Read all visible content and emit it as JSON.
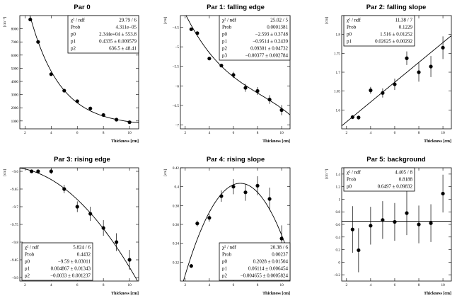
{
  "chart_data": [
    {
      "type": "scatter",
      "title": "Par 0",
      "xlabel": "Thickness [cm]",
      "ylabel": "[cm⁻³]",
      "xlim": [
        1.6,
        10.7
      ],
      "ylim": [
        400,
        9000
      ],
      "xticks": [
        2,
        4,
        6,
        8,
        10
      ],
      "yticks": [
        1000,
        2000,
        3000,
        4000,
        5000,
        6000,
        7000,
        8000
      ],
      "x": [
        2.4,
        3.0,
        4.0,
        5.0,
        6.0,
        7.0,
        8.0,
        9.0,
        10.0
      ],
      "y": [
        8700,
        7000,
        4550,
        3300,
        2500,
        1950,
        1450,
        1100,
        900
      ],
      "yerr": [
        0,
        0,
        0,
        0,
        0,
        0,
        0,
        0,
        0
      ],
      "curve": {
        "kind": "exp",
        "a": 23440,
        "b": 0.4335,
        "c": 636.5
      },
      "stats": {
        "side": "right",
        "rows": [
          {
            "label": "χ² / ndf",
            "value": "29.79 / 6"
          },
          {
            "label": "Prob",
            "value": "4.311e−05"
          },
          {
            "label": "p0",
            "value": "2.344e+04 ± 553.8"
          },
          {
            "label": "p1",
            "value": "0.4335 ± 0.009579"
          },
          {
            "label": "p2",
            "value": "636.5 ± 48.41"
          }
        ]
      }
    },
    {
      "type": "scatter",
      "title": "Par 1: falling edge",
      "xlabel": "Thickness [cm]",
      "ylabel": "[cm]",
      "xlim": [
        1.6,
        10.7
      ],
      "ylim": [
        -7.1,
        -4.2
      ],
      "xticks": [
        2,
        4,
        6,
        8,
        10
      ],
      "yticks": [
        -7,
        -6.5,
        -6,
        -5.5,
        -5,
        -4.5
      ],
      "x": [
        2.5,
        3.0,
        4.0,
        5.0,
        6.0,
        7.0,
        8.0,
        9.0,
        10.0
      ],
      "y": [
        -4.55,
        -4.65,
        -5.3,
        -5.48,
        -5.72,
        -6.05,
        -6.13,
        -6.35,
        -6.62
      ],
      "yerr": [
        0,
        0,
        0,
        0,
        0.08,
        0.1,
        0.1,
        0.11,
        0.13
      ],
      "curve": {
        "kind": "poly",
        "coef": [
          -2.593,
          -0.9514,
          0.09301,
          -0.00377
        ]
      },
      "stats": {
        "side": "right",
        "rows": [
          {
            "label": "χ² / ndf",
            "value": "25.02 / 5"
          },
          {
            "label": "Prob",
            "value": "0.0001381"
          },
          {
            "label": "p0",
            "value": "−2.593 ± 0.3748"
          },
          {
            "label": "p1",
            "value": "−0.9514 ± 0.2439"
          },
          {
            "label": "p2",
            "value": "0.09301 ± 0.04732"
          },
          {
            "label": "p3",
            "value": "−0.00377 ± 0.002784"
          }
        ]
      }
    },
    {
      "type": "scatter",
      "title": "Par 2: falling slope",
      "xlabel": "Thickness [cm]",
      "ylabel": "[cm]",
      "xlim": [
        1.6,
        10.7
      ],
      "ylim": [
        1.55,
        1.85
      ],
      "xticks": [
        2,
        4,
        6,
        8,
        10
      ],
      "yticks": [
        1.6,
        1.65,
        1.7,
        1.75,
        1.8
      ],
      "x": [
        2.5,
        3.0,
        4.0,
        5.0,
        6.0,
        7.0,
        8.0,
        9.0,
        10.0
      ],
      "y": [
        1.581,
        1.58,
        1.652,
        1.645,
        1.668,
        1.737,
        1.7,
        1.715,
        1.765
      ],
      "yerr": [
        0.005,
        0.005,
        0.009,
        0.012,
        0.015,
        0.018,
        0.025,
        0.028,
        0.03
      ],
      "curve": {
        "kind": "poly",
        "coef": [
          1.516,
          0.02625
        ]
      },
      "stats": {
        "side": "left",
        "rows": [
          {
            "label": "χ² / ndf",
            "value": "11.38 / 7"
          },
          {
            "label": "Prob",
            "value": "0.1229"
          },
          {
            "label": "p0",
            "value": "1.516 ± 0.01252"
          },
          {
            "label": "p1",
            "value": "0.02625 ± 0.00292"
          }
        ]
      }
    },
    {
      "type": "scatter",
      "title": "Par 3: rising edge",
      "xlabel": "Thickness [cm]",
      "ylabel": "[cm]",
      "xlim": [
        1.6,
        10.7
      ],
      "ylim": [
        -9.91,
        -9.59
      ],
      "xticks": [
        2,
        4,
        6,
        8,
        10
      ],
      "yticks": [
        -9.9,
        -9.85,
        -9.8,
        -9.75,
        -9.7,
        -9.65,
        -9.6
      ],
      "x": [
        2.5,
        3.0,
        4.0,
        5.0,
        6.0,
        7.0,
        8.0,
        9.0,
        10.0
      ],
      "y": [
        -9.6,
        -9.6,
        -9.6,
        -9.65,
        -9.7,
        -9.72,
        -9.76,
        -9.8,
        -9.85
      ],
      "yerr": [
        0.003,
        0.005,
        0.007,
        0.012,
        0.015,
        0.02,
        0.022,
        0.025,
        0.028
      ],
      "curve": {
        "kind": "poly",
        "coef": [
          -9.59,
          0.004867,
          -0.0033
        ]
      },
      "stats": {
        "side": "left",
        "rows": [
          {
            "label": "χ² / ndf",
            "value": "5.824 / 6"
          },
          {
            "label": "Prob",
            "value": "0.4432"
          },
          {
            "label": "p0",
            "value": "−9.59 ± 0.03011"
          },
          {
            "label": "p1",
            "value": "0.004867 ± 0.01343"
          },
          {
            "label": "p2",
            "value": "−0.0033 ± 0.001237"
          }
        ]
      }
    },
    {
      "type": "scatter",
      "title": "Par 4: rising slope",
      "xlabel": "Thickness [cm]",
      "ylabel": "[cm]",
      "xlim": [
        1.6,
        10.7
      ],
      "ylim": [
        0.3,
        0.42
      ],
      "xticks": [
        2,
        4,
        6,
        8,
        10
      ],
      "yticks": [
        0.32,
        0.34,
        0.36,
        0.38,
        0.4,
        0.42
      ],
      "x": [
        2.5,
        3.0,
        4.0,
        5.0,
        6.0,
        7.0,
        8.0,
        9.0,
        10.0
      ],
      "y": [
        0.316,
        0.361,
        0.367,
        0.39,
        0.4,
        0.394,
        0.401,
        0.387,
        0.345
      ],
      "yerr": [
        0.002,
        0.003,
        0.004,
        0.006,
        0.008,
        0.009,
        0.01,
        0.012,
        0.014
      ],
      "curve": {
        "kind": "poly",
        "coef": [
          0.2028,
          0.06114,
          -0.004655
        ]
      },
      "stats": {
        "side": "right",
        "rows": [
          {
            "label": "χ² / ndf",
            "value": "20.38 / 6"
          },
          {
            "label": "Prob",
            "value": "0.00237"
          },
          {
            "label": "p0",
            "value": "0.2028 ± 0.01504"
          },
          {
            "label": "p1",
            "value": "0.06114 ± 0.006454"
          },
          {
            "label": "p2",
            "value": "−0.004655 ± 0.0005824"
          }
        ]
      }
    },
    {
      "type": "scatter",
      "title": "Par 5: background",
      "xlabel": "Thickness [cm]",
      "ylabel": "[cm⁻³]",
      "xlim": [
        1.6,
        10.7
      ],
      "ylim": [
        -0.3,
        1.5
      ],
      "xticks": [
        2,
        4,
        6,
        8,
        10
      ],
      "yticks": [
        -0.2,
        0,
        0.2,
        0.4,
        0.6,
        0.8,
        1,
        1.2,
        1.4
      ],
      "x": [
        2.5,
        3.0,
        4.0,
        5.0,
        6.0,
        7.0,
        8.0,
        9.0,
        10.0
      ],
      "y": [
        0.52,
        0.19,
        0.58,
        0.67,
        0.64,
        0.78,
        0.6,
        0.62,
        1.09
      ],
      "yerr": [
        0.37,
        0.35,
        0.3,
        0.3,
        0.3,
        0.35,
        0.3,
        0.3,
        0.3
      ],
      "curve": {
        "kind": "poly",
        "coef": [
          0.6497
        ]
      },
      "stats": {
        "side": "left",
        "rows": [
          {
            "label": "χ² / ndf",
            "value": "4.405 / 8"
          },
          {
            "label": "Prob",
            "value": "0.8188"
          },
          {
            "label": "p0",
            "value": "0.6497 ± 0.09832"
          }
        ]
      }
    }
  ]
}
